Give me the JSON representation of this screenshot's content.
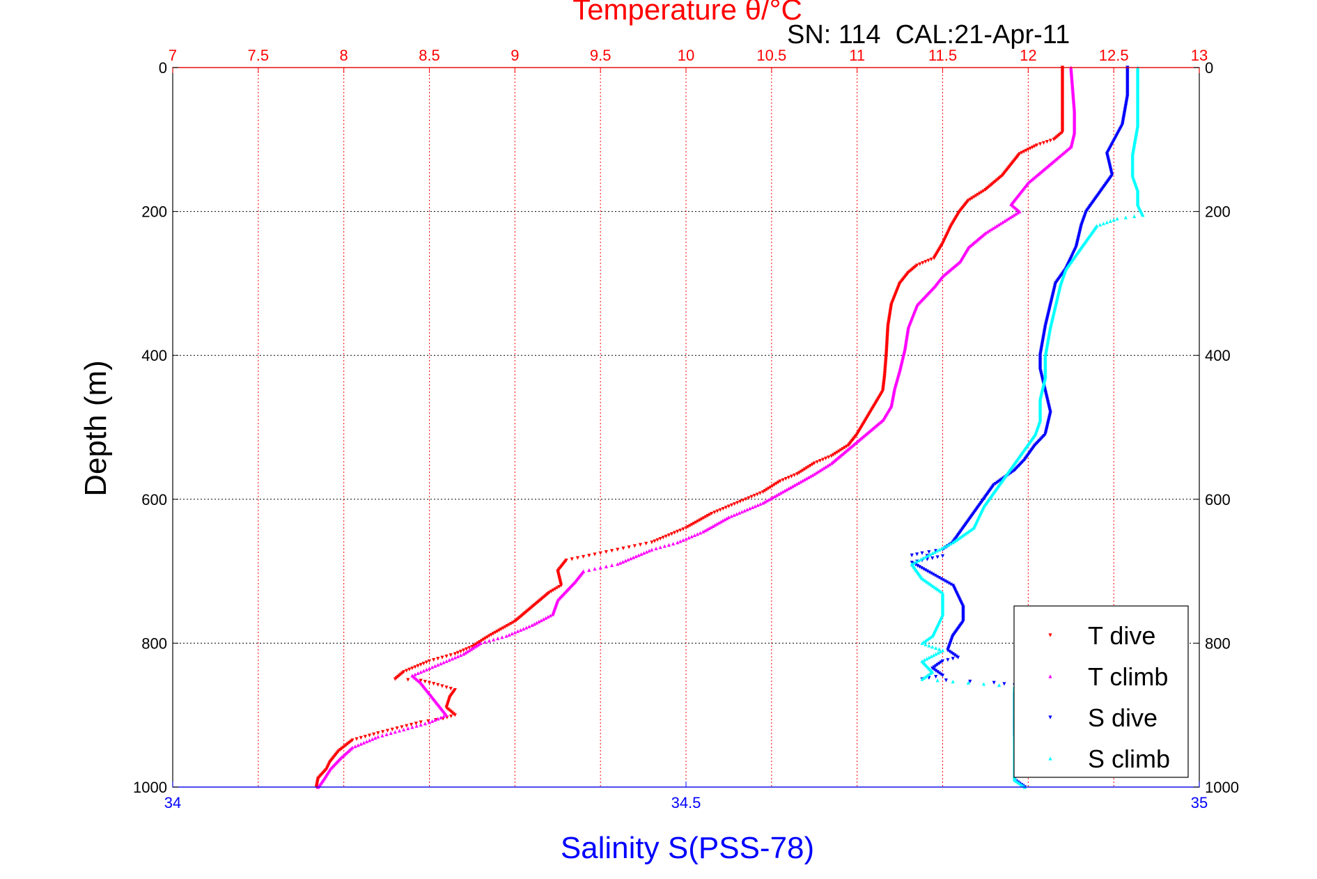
{
  "chart_data": {
    "type": "scatter",
    "title": "Temperature θ/°C",
    "subtitle": "SN: 114  CAL:21-Apr-11",
    "ylabel": "Depth (m)",
    "xlabel": "Salinity S(PSS-78)",
    "x_top": {
      "label": "Temperature θ/°C",
      "lim": [
        7,
        13
      ],
      "ticks": [
        "7",
        "7.5",
        "8",
        "8.5",
        "9",
        "9.5",
        "10",
        "10.5",
        "11",
        "11.5",
        "12",
        "12.5",
        "13"
      ]
    },
    "x_bottom": {
      "label": "Salinity S(PSS-78)",
      "lim": [
        34,
        35
      ],
      "ticks": [
        "34",
        "34.5",
        "35"
      ]
    },
    "y": {
      "lim": [
        0,
        1000
      ],
      "reversed": true,
      "ticks": [
        "0",
        "200",
        "400",
        "600",
        "800",
        "1000"
      ]
    },
    "grid": true,
    "legend_position": "bottom-right",
    "colors": {
      "temperature_axis": "#ff0000",
      "salinity_axis": "#0000ff",
      "grid_red": "#ff0000",
      "grid_black": "#000000"
    },
    "series": [
      {
        "name": "T dive",
        "axis": "temperature",
        "marker": "down-triangle",
        "color": "#ff0000",
        "points": [
          [
            12.2,
            0
          ],
          [
            12.2,
            60
          ],
          [
            12.2,
            90
          ],
          [
            12.15,
            100
          ],
          [
            12.05,
            108
          ],
          [
            11.95,
            120
          ],
          [
            11.9,
            135
          ],
          [
            11.85,
            150
          ],
          [
            11.8,
            160
          ],
          [
            11.75,
            170
          ],
          [
            11.65,
            185
          ],
          [
            11.6,
            200
          ],
          [
            11.55,
            220
          ],
          [
            11.5,
            245
          ],
          [
            11.45,
            265
          ],
          [
            11.35,
            275
          ],
          [
            11.3,
            285
          ],
          [
            11.25,
            300
          ],
          [
            11.2,
            330
          ],
          [
            11.18,
            360
          ],
          [
            11.17,
            400
          ],
          [
            11.16,
            430
          ],
          [
            11.15,
            450
          ],
          [
            11.1,
            470
          ],
          [
            11.05,
            490
          ],
          [
            11.0,
            510
          ],
          [
            10.95,
            525
          ],
          [
            10.85,
            540
          ],
          [
            10.75,
            550
          ],
          [
            10.65,
            565
          ],
          [
            10.55,
            575
          ],
          [
            10.45,
            590
          ],
          [
            10.3,
            605
          ],
          [
            10.15,
            620
          ],
          [
            10.0,
            640
          ],
          [
            9.9,
            650
          ],
          [
            9.8,
            660
          ],
          [
            9.7,
            665
          ],
          [
            9.5,
            675
          ],
          [
            9.3,
            685
          ],
          [
            9.25,
            700
          ],
          [
            9.27,
            720
          ],
          [
            9.2,
            730
          ],
          [
            9.1,
            750
          ],
          [
            9.0,
            770
          ],
          [
            8.85,
            790
          ],
          [
            8.75,
            805
          ],
          [
            8.65,
            815
          ],
          [
            8.5,
            825
          ],
          [
            8.35,
            840
          ],
          [
            8.3,
            850
          ],
          [
            8.45,
            852
          ],
          [
            8.55,
            858
          ],
          [
            8.65,
            865
          ],
          [
            8.62,
            875
          ],
          [
            8.6,
            890
          ],
          [
            8.65,
            900
          ],
          [
            8.58,
            905
          ],
          [
            8.45,
            910
          ],
          [
            8.2,
            925
          ],
          [
            8.05,
            935
          ],
          [
            7.97,
            950
          ],
          [
            7.92,
            965
          ],
          [
            7.9,
            975
          ],
          [
            7.85,
            988
          ],
          [
            7.84,
            1000
          ]
        ]
      },
      {
        "name": "T climb",
        "axis": "temperature",
        "marker": "up-triangle",
        "color": "#ff00ff",
        "points": [
          [
            12.25,
            0
          ],
          [
            12.27,
            60
          ],
          [
            12.27,
            90
          ],
          [
            12.25,
            110
          ],
          [
            12.2,
            120
          ],
          [
            12.15,
            130
          ],
          [
            12.05,
            150
          ],
          [
            12.0,
            160
          ],
          [
            11.95,
            175
          ],
          [
            11.9,
            190
          ],
          [
            11.95,
            200
          ],
          [
            11.85,
            215
          ],
          [
            11.75,
            230
          ],
          [
            11.65,
            250
          ],
          [
            11.6,
            270
          ],
          [
            11.5,
            290
          ],
          [
            11.45,
            305
          ],
          [
            11.35,
            330
          ],
          [
            11.3,
            360
          ],
          [
            11.28,
            390
          ],
          [
            11.25,
            420
          ],
          [
            11.22,
            445
          ],
          [
            11.2,
            470
          ],
          [
            11.15,
            490
          ],
          [
            11.05,
            510
          ],
          [
            10.95,
            530
          ],
          [
            10.85,
            550
          ],
          [
            10.75,
            565
          ],
          [
            10.6,
            585
          ],
          [
            10.45,
            605
          ],
          [
            10.25,
            625
          ],
          [
            10.1,
            645
          ],
          [
            9.95,
            660
          ],
          [
            9.8,
            670
          ],
          [
            9.6,
            690
          ],
          [
            9.4,
            700
          ],
          [
            9.35,
            715
          ],
          [
            9.25,
            740
          ],
          [
            9.22,
            760
          ],
          [
            9.1,
            775
          ],
          [
            8.95,
            790
          ],
          [
            8.8,
            800
          ],
          [
            8.7,
            815
          ],
          [
            8.55,
            830
          ],
          [
            8.4,
            845
          ],
          [
            8.45,
            855
          ],
          [
            8.5,
            870
          ],
          [
            8.55,
            885
          ],
          [
            8.6,
            900
          ],
          [
            8.5,
            910
          ],
          [
            8.35,
            920
          ],
          [
            8.2,
            930
          ],
          [
            8.05,
            945
          ],
          [
            7.98,
            960
          ],
          [
            7.92,
            975
          ],
          [
            7.88,
            990
          ],
          [
            7.85,
            1000
          ]
        ]
      },
      {
        "name": "S dive",
        "axis": "salinity",
        "marker": "down-triangle",
        "color": "#0000ff",
        "points": [
          [
            34.93,
            0
          ],
          [
            34.93,
            40
          ],
          [
            34.925,
            80
          ],
          [
            34.91,
            120
          ],
          [
            34.915,
            150
          ],
          [
            34.9,
            180
          ],
          [
            34.89,
            200
          ],
          [
            34.885,
            220
          ],
          [
            34.88,
            250
          ],
          [
            34.87,
            280
          ],
          [
            34.86,
            300
          ],
          [
            34.855,
            330
          ],
          [
            34.85,
            360
          ],
          [
            34.845,
            400
          ],
          [
            34.845,
            420
          ],
          [
            34.85,
            450
          ],
          [
            34.855,
            480
          ],
          [
            34.85,
            510
          ],
          [
            34.84,
            525
          ],
          [
            34.83,
            545
          ],
          [
            34.82,
            560
          ],
          [
            34.8,
            580
          ],
          [
            34.79,
            600
          ],
          [
            34.78,
            620
          ],
          [
            34.77,
            640
          ],
          [
            34.76,
            660
          ],
          [
            34.75,
            670
          ],
          [
            34.73,
            675
          ],
          [
            34.72,
            678
          ],
          [
            34.75,
            679
          ],
          [
            34.74,
            682
          ],
          [
            34.72,
            688
          ],
          [
            34.735,
            700
          ],
          [
            34.76,
            720
          ],
          [
            34.77,
            750
          ],
          [
            34.77,
            770
          ],
          [
            34.76,
            790
          ],
          [
            34.755,
            810
          ],
          [
            34.765,
            820
          ],
          [
            34.75,
            825
          ],
          [
            34.74,
            835
          ],
          [
            34.75,
            845
          ],
          [
            34.73,
            850
          ],
          [
            34.8,
            855
          ],
          [
            34.83,
            860
          ],
          [
            34.82,
            870
          ],
          [
            34.82,
            930
          ],
          [
            34.83,
            960
          ],
          [
            34.82,
            990
          ],
          [
            34.83,
            1000
          ]
        ]
      },
      {
        "name": "S climb",
        "axis": "salinity",
        "marker": "up-triangle",
        "color": "#00ffff",
        "points": [
          [
            34.94,
            0
          ],
          [
            34.94,
            40
          ],
          [
            34.94,
            80
          ],
          [
            34.935,
            120
          ],
          [
            34.935,
            150
          ],
          [
            34.94,
            170
          ],
          [
            34.94,
            190
          ],
          [
            34.945,
            205
          ],
          [
            34.92,
            210
          ],
          [
            34.9,
            220
          ],
          [
            34.885,
            250
          ],
          [
            34.87,
            280
          ],
          [
            34.865,
            300
          ],
          [
            34.86,
            330
          ],
          [
            34.855,
            360
          ],
          [
            34.85,
            400
          ],
          [
            34.85,
            430
          ],
          [
            34.845,
            460
          ],
          [
            34.845,
            490
          ],
          [
            34.84,
            510
          ],
          [
            34.83,
            530
          ],
          [
            34.82,
            550
          ],
          [
            34.81,
            570
          ],
          [
            34.8,
            590
          ],
          [
            34.79,
            610
          ],
          [
            34.78,
            640
          ],
          [
            34.76,
            660
          ],
          [
            34.74,
            675
          ],
          [
            34.72,
            690
          ],
          [
            34.73,
            710
          ],
          [
            34.75,
            730
          ],
          [
            34.75,
            760
          ],
          [
            34.74,
            790
          ],
          [
            34.73,
            800
          ],
          [
            34.75,
            810
          ],
          [
            34.73,
            825
          ],
          [
            34.74,
            840
          ],
          [
            34.73,
            850
          ],
          [
            34.82,
            860
          ],
          [
            34.82,
            880
          ],
          [
            34.82,
            960
          ],
          [
            34.82,
            990
          ],
          [
            34.83,
            1000
          ]
        ]
      }
    ]
  }
}
